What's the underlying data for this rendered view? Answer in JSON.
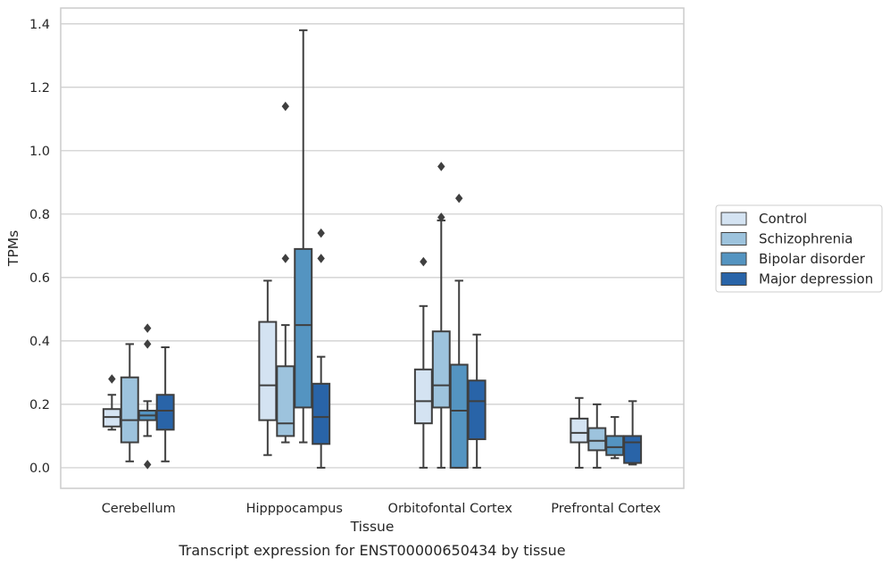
{
  "caption": "Transcript expression for ENST00000650434 by tissue",
  "chart_data": {
    "type": "box",
    "xlabel": "Tissue",
    "ylabel": "TPMs",
    "ylim": [
      -0.065,
      1.45
    ],
    "yticks": [
      "0.0",
      "0.2",
      "0.4",
      "0.6",
      "0.8",
      "1.0",
      "1.2",
      "1.4"
    ],
    "categories": [
      "Cerebellum",
      "Hipppocampus",
      "Orbitofontal Cortex",
      "Prefrontal Cortex"
    ],
    "grid": "horizontal",
    "legend_position": "right",
    "series": [
      {
        "name": "Control",
        "color": "#d4e3f2",
        "boxes": [
          {
            "whislo": 0.12,
            "q1": 0.13,
            "med": 0.16,
            "q3": 0.185,
            "whishi": 0.23,
            "fliers": [
              0.28
            ]
          },
          {
            "whislo": 0.04,
            "q1": 0.15,
            "med": 0.26,
            "q3": 0.46,
            "whishi": 0.59,
            "fliers": []
          },
          {
            "whislo": 0.0,
            "q1": 0.14,
            "med": 0.21,
            "q3": 0.31,
            "whishi": 0.51,
            "fliers": [
              0.65
            ]
          },
          {
            "whislo": 0.0,
            "q1": 0.08,
            "med": 0.11,
            "q3": 0.155,
            "whishi": 0.22,
            "fliers": []
          }
        ]
      },
      {
        "name": "Schizophrenia",
        "color": "#9dc3dd",
        "boxes": [
          {
            "whislo": 0.02,
            "q1": 0.08,
            "med": 0.15,
            "q3": 0.285,
            "whishi": 0.39,
            "fliers": []
          },
          {
            "whislo": 0.08,
            "q1": 0.1,
            "med": 0.14,
            "q3": 0.32,
            "whishi": 0.45,
            "fliers": [
              0.66,
              1.14
            ]
          },
          {
            "whislo": 0.0,
            "q1": 0.19,
            "med": 0.26,
            "q3": 0.43,
            "whishi": 0.78,
            "fliers": [
              0.79,
              0.95
            ]
          },
          {
            "whislo": 0.0,
            "q1": 0.055,
            "med": 0.085,
            "q3": 0.125,
            "whishi": 0.2,
            "fliers": []
          }
        ]
      },
      {
        "name": "Bipolar disorder",
        "color": "#5494c1",
        "boxes": [
          {
            "whislo": 0.1,
            "q1": 0.15,
            "med": 0.165,
            "q3": 0.18,
            "whishi": 0.21,
            "fliers": [
              0.01,
              0.39,
              0.44
            ]
          },
          {
            "whislo": 0.08,
            "q1": 0.19,
            "med": 0.45,
            "q3": 0.69,
            "whishi": 1.38,
            "fliers": []
          },
          {
            "whislo": 0.0,
            "q1": 0.0,
            "med": 0.18,
            "q3": 0.325,
            "whishi": 0.59,
            "fliers": [
              0.85
            ]
          },
          {
            "whislo": 0.03,
            "q1": 0.04,
            "med": 0.065,
            "q3": 0.1,
            "whishi": 0.16,
            "fliers": []
          }
        ]
      },
      {
        "name": "Major depression",
        "color": "#2964a8",
        "boxes": [
          {
            "whislo": 0.02,
            "q1": 0.12,
            "med": 0.18,
            "q3": 0.23,
            "whishi": 0.38,
            "fliers": []
          },
          {
            "whislo": 0.0,
            "q1": 0.075,
            "med": 0.16,
            "q3": 0.265,
            "whishi": 0.35,
            "fliers": [
              0.66,
              0.74
            ]
          },
          {
            "whislo": 0.0,
            "q1": 0.09,
            "med": 0.21,
            "q3": 0.275,
            "whishi": 0.42,
            "fliers": []
          },
          {
            "whislo": 0.01,
            "q1": 0.015,
            "med": 0.08,
            "q3": 0.1,
            "whishi": 0.21,
            "fliers": []
          }
        ]
      }
    ]
  }
}
